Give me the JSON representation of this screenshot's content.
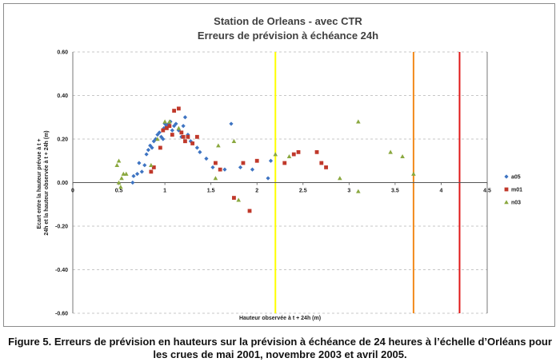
{
  "chart_data": {
    "type": "scatter",
    "title": [
      "Station de Orleans - avec CTR",
      "Erreurs de prévision à échéance 24h"
    ],
    "xlabel": "Hauteur observée à t + 24h (m)",
    "ylabel": [
      "Ecart entre la hauteur prévue à t +",
      "24h et la hauteur observée à t + 24h (m)"
    ],
    "xlim": [
      0,
      4.5
    ],
    "ylim": [
      -0.6,
      0.6
    ],
    "x_ticks": [
      "0",
      "0.5",
      "1",
      "1.5",
      "2",
      "2.5",
      "3",
      "3.5",
      "4",
      "4.5"
    ],
    "y_ticks": [
      "0.60",
      "0.40",
      "0.20",
      "0.00",
      "-0.20",
      "-0.40",
      "-0.60"
    ],
    "grid": "horizontal dashed",
    "legend_position": "right",
    "vertical_lines": [
      {
        "x": 2.2,
        "color": "#ffff00"
      },
      {
        "x": 3.7,
        "color": "#f28a1b"
      },
      {
        "x": 4.2,
        "color": "#e01818"
      }
    ],
    "series": [
      {
        "name": "a05",
        "marker": "diamond",
        "color": "#3e74c2",
        "points": [
          [
            0.65,
            0.0
          ],
          [
            0.66,
            0.03
          ],
          [
            0.7,
            0.04
          ],
          [
            0.72,
            0.09
          ],
          [
            0.75,
            0.05
          ],
          [
            0.78,
            0.08
          ],
          [
            0.8,
            0.13
          ],
          [
            0.82,
            0.15
          ],
          [
            0.84,
            0.17
          ],
          [
            0.86,
            0.16
          ],
          [
            0.88,
            0.19
          ],
          [
            0.9,
            0.2
          ],
          [
            0.92,
            0.22
          ],
          [
            0.94,
            0.23
          ],
          [
            0.96,
            0.21
          ],
          [
            0.98,
            0.2
          ],
          [
            0.99,
            0.25
          ],
          [
            1.0,
            0.27
          ],
          [
            1.02,
            0.26
          ],
          [
            1.04,
            0.27
          ],
          [
            1.06,
            0.28
          ],
          [
            1.08,
            0.24
          ],
          [
            1.1,
            0.26
          ],
          [
            1.12,
            0.27
          ],
          [
            1.15,
            0.24
          ],
          [
            1.18,
            0.21
          ],
          [
            1.2,
            0.26
          ],
          [
            1.22,
            0.3
          ],
          [
            1.25,
            0.22
          ],
          [
            1.28,
            0.19
          ],
          [
            1.35,
            0.16
          ],
          [
            1.38,
            0.14
          ],
          [
            1.45,
            0.11
          ],
          [
            1.52,
            0.07
          ],
          [
            1.65,
            0.06
          ],
          [
            1.72,
            0.27
          ],
          [
            1.82,
            0.07
          ],
          [
            1.95,
            0.06
          ],
          [
            2.12,
            0.02
          ],
          [
            2.15,
            0.1
          ]
        ]
      },
      {
        "name": "m01",
        "marker": "square",
        "color": "#c0392b",
        "points": [
          [
            0.85,
            0.05
          ],
          [
            0.88,
            0.07
          ],
          [
            0.95,
            0.16
          ],
          [
            0.98,
            0.24
          ],
          [
            1.02,
            0.25
          ],
          [
            1.05,
            0.26
          ],
          [
            1.08,
            0.22
          ],
          [
            1.1,
            0.33
          ],
          [
            1.15,
            0.34
          ],
          [
            1.18,
            0.23
          ],
          [
            1.2,
            0.21
          ],
          [
            1.22,
            0.19
          ],
          [
            1.25,
            0.21
          ],
          [
            1.3,
            0.18
          ],
          [
            1.35,
            0.21
          ],
          [
            1.55,
            0.09
          ],
          [
            1.6,
            0.06
          ],
          [
            1.75,
            -0.07
          ],
          [
            1.85,
            0.09
          ],
          [
            1.92,
            -0.13
          ],
          [
            2.0,
            0.1
          ],
          [
            2.3,
            0.09
          ],
          [
            2.4,
            0.13
          ],
          [
            2.45,
            0.14
          ],
          [
            2.65,
            0.14
          ],
          [
            2.7,
            0.09
          ],
          [
            2.75,
            0.07
          ]
        ]
      },
      {
        "name": "n03",
        "marker": "triangle",
        "color": "#8aa83f",
        "points": [
          [
            0.48,
            0.08
          ],
          [
            0.5,
            0.1
          ],
          [
            0.5,
            0.0
          ],
          [
            0.52,
            -0.02
          ],
          [
            0.53,
            0.02
          ],
          [
            0.55,
            0.04
          ],
          [
            0.58,
            0.04
          ],
          [
            0.85,
            0.08
          ],
          [
            0.92,
            0.2
          ],
          [
            1.0,
            0.28
          ],
          [
            1.05,
            0.28
          ],
          [
            1.15,
            0.25
          ],
          [
            1.55,
            0.02
          ],
          [
            1.58,
            0.17
          ],
          [
            1.75,
            0.19
          ],
          [
            1.8,
            -0.08
          ],
          [
            2.2,
            0.13
          ],
          [
            2.35,
            0.12
          ],
          [
            2.9,
            0.02
          ],
          [
            3.1,
            0.28
          ],
          [
            3.1,
            -0.04
          ],
          [
            3.45,
            0.14
          ],
          [
            3.58,
            0.12
          ],
          [
            3.7,
            0.04
          ]
        ]
      }
    ]
  },
  "caption": {
    "line1": "Figure 5. Erreurs de prévision en hauteurs sur la prévision à échéance de 24 heures à l’échelle d’Orléans pour",
    "line2": "les crues de mai 2001, novembre 2003 et avril 2005."
  }
}
